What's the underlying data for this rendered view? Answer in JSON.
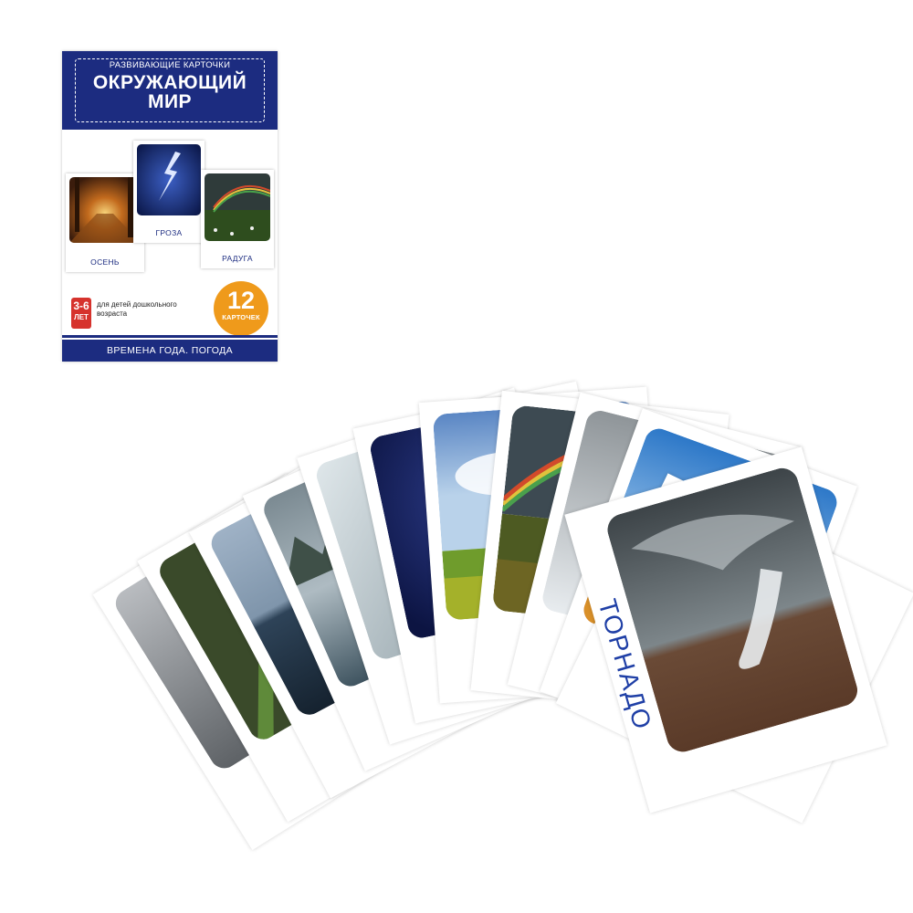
{
  "box": {
    "subtitle": "РАЗВИВАЮЩИЕ КАРТОЧКИ",
    "title_line1": "ОКРУЖАЮЩИЙ",
    "title_line2": "МИР",
    "mini_cards": [
      {
        "caption": "ОСЕНЬ"
      },
      {
        "caption": "ГРОЗА"
      },
      {
        "caption": "РАДУГА"
      }
    ],
    "age_range": "3-6",
    "age_unit": "ЛЕТ",
    "age_description": "для детей дошкольного возраста",
    "card_count": "12",
    "card_count_word": "КАРТОЧЕК",
    "series": "ВРЕМЕНА ГОДА. ПОГОДА"
  },
  "front_card": {
    "label": "ТОРНАДО"
  },
  "colors": {
    "brand_blue": "#1c2c80",
    "label_blue": "#1f3fa6",
    "badge_red": "#d6332d",
    "badge_orange": "#ef9a1b"
  }
}
